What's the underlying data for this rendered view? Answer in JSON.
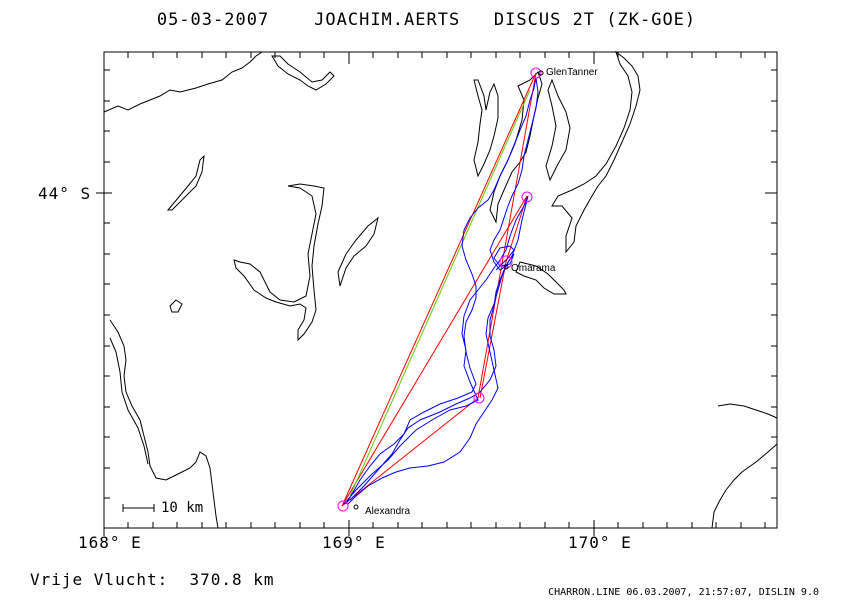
{
  "header": {
    "date": "05-03-2007",
    "pilot": "JOACHIM.AERTS",
    "glider": "DISCUS 2T (ZK-GOE)"
  },
  "axes": {
    "lat_label": "44° S",
    "lon_labels": [
      "168° E",
      "169° E",
      "170° E"
    ]
  },
  "scale_bar": {
    "label": "10 km"
  },
  "places": {
    "glentanner": "GlenTanner",
    "omarama": "Omarama",
    "alexandra": "Alexandra"
  },
  "footer": {
    "distance_label": "Vrije Vlucht:",
    "distance_value": "370.8 km",
    "credit": "CHARRON.LINE 06.03.2007, 21:57:07, DISLIN 9.0"
  },
  "colors": {
    "track": "#0000ff",
    "task_line": "#ff0000",
    "leg_line": "#66cc00",
    "turnpoint": "#ff00ff",
    "coast": "#000000"
  },
  "map": {
    "lon_range": [
      168.0,
      170.75
    ],
    "lat_center": "44° S",
    "turnpoints": [
      "GlenTanner",
      "Omarama",
      "Alexandra"
    ]
  }
}
